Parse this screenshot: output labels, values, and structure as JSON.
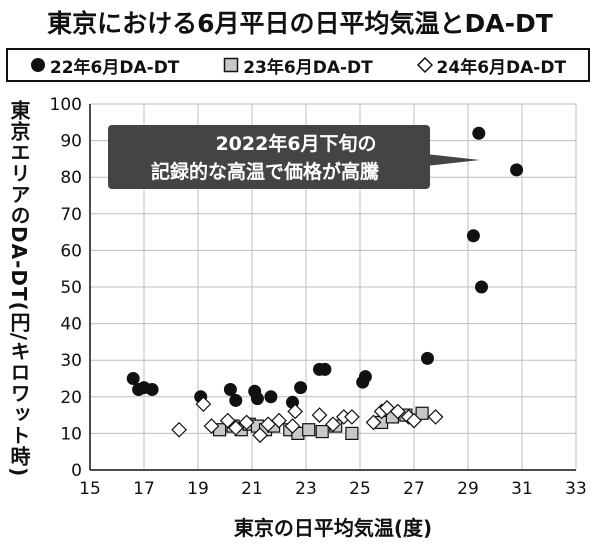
{
  "chart_data": {
    "type": "scatter",
    "title": "東京における6月平日の日平均気温とDA-DT",
    "xlabel": "東京の日平均気温(度)",
    "ylabel": "東京エリアのDA-DT(円/キロワット時)",
    "xlim": [
      15,
      33
    ],
    "ylim": [
      0,
      100
    ],
    "xticks": [
      15,
      17,
      19,
      21,
      23,
      25,
      27,
      29,
      31,
      33
    ],
    "yticks": [
      0,
      10,
      20,
      30,
      40,
      50,
      60,
      70,
      80,
      90,
      100
    ],
    "grid": true,
    "legend_position": "top",
    "series": [
      {
        "name": "22年6月DA-DT",
        "marker": "circle-filled",
        "color": "#111111",
        "points": [
          [
            16.6,
            25
          ],
          [
            16.8,
            22
          ],
          [
            17.0,
            22.5
          ],
          [
            17.3,
            22
          ],
          [
            19.1,
            20
          ],
          [
            20.2,
            22
          ],
          [
            20.4,
            19
          ],
          [
            21.1,
            21.5
          ],
          [
            21.2,
            19.5
          ],
          [
            21.7,
            20
          ],
          [
            22.5,
            18.5
          ],
          [
            22.8,
            22.5
          ],
          [
            23.5,
            27.5
          ],
          [
            23.7,
            27.5
          ],
          [
            25.1,
            24
          ],
          [
            25.2,
            25.5
          ],
          [
            27.5,
            30.5
          ],
          [
            29.2,
            64
          ],
          [
            29.4,
            92
          ],
          [
            29.5,
            50
          ],
          [
            30.8,
            82
          ]
        ]
      },
      {
        "name": "23年6月DA-DT",
        "marker": "square-gray",
        "color": "#c8c8c8",
        "points": [
          [
            19.8,
            11
          ],
          [
            20.3,
            12
          ],
          [
            20.6,
            11
          ],
          [
            20.9,
            12.5
          ],
          [
            21.2,
            12
          ],
          [
            21.5,
            11
          ],
          [
            21.8,
            12
          ],
          [
            22.4,
            11
          ],
          [
            22.7,
            10
          ],
          [
            23.1,
            11
          ],
          [
            23.6,
            10.5
          ],
          [
            24.1,
            12
          ],
          [
            24.7,
            10
          ],
          [
            25.8,
            13
          ],
          [
            26.2,
            14.5
          ],
          [
            26.7,
            15
          ],
          [
            27.3,
            15.5
          ]
        ]
      },
      {
        "name": "24年6月DA-DT",
        "marker": "diamond-open",
        "color": "#ffffff",
        "points": [
          [
            18.3,
            11
          ],
          [
            19.2,
            18
          ],
          [
            19.5,
            12
          ],
          [
            20.1,
            13.5
          ],
          [
            20.4,
            11.5
          ],
          [
            20.8,
            13
          ],
          [
            21.3,
            9.5
          ],
          [
            21.6,
            12.5
          ],
          [
            22.0,
            13.5
          ],
          [
            22.5,
            12
          ],
          [
            22.6,
            16
          ],
          [
            23.5,
            15
          ],
          [
            24.0,
            12.5
          ],
          [
            24.4,
            14.5
          ],
          [
            24.7,
            14.5
          ],
          [
            25.5,
            13
          ],
          [
            25.8,
            16
          ],
          [
            26.0,
            17
          ],
          [
            26.4,
            16
          ],
          [
            26.8,
            14.5
          ],
          [
            27.0,
            13.5
          ],
          [
            27.8,
            14.5
          ]
        ]
      }
    ],
    "annotation": {
      "text_line1": "2022年6月下旬の",
      "text_line2": "記録的な高温で価格が高騰",
      "style": "dark callout box pointing right"
    }
  }
}
